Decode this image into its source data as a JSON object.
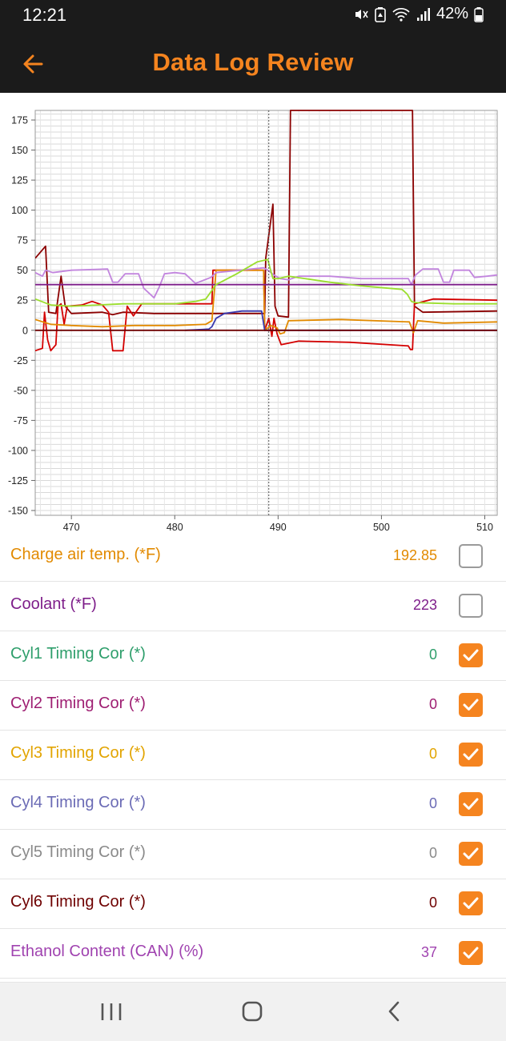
{
  "status": {
    "time": "12:21",
    "battery": "42%"
  },
  "appbar": {
    "title": "Data Log Review",
    "back_icon": "arrow-left-icon"
  },
  "colors": {
    "accent": "#f5841f",
    "bar_bg": "#1b1b1b"
  },
  "chart_data": {
    "type": "line",
    "xlim": [
      466.5,
      511.2
    ],
    "ylim": [
      -154,
      183
    ],
    "x_ticks": [
      470,
      480,
      490,
      500,
      510
    ],
    "y_ticks": [
      175,
      150,
      125,
      100,
      75,
      50,
      25,
      0,
      -25,
      -50,
      -75,
      -100,
      -125,
      -150
    ],
    "y_minor_step": 5,
    "cursor_x": 489.1,
    "grid": true,
    "series": [
      {
        "color": "#8B0000",
        "points": [
          [
            466.5,
            60
          ],
          [
            467.5,
            70
          ],
          [
            467.8,
            15
          ],
          [
            468.5,
            14
          ],
          [
            469,
            45
          ],
          [
            469.4,
            20
          ],
          [
            470,
            14
          ],
          [
            473,
            15
          ],
          [
            474,
            13
          ],
          [
            475,
            15
          ],
          [
            478,
            14
          ],
          [
            482,
            14
          ],
          [
            486,
            14
          ],
          [
            488.7,
            14
          ],
          [
            488.8,
            60
          ],
          [
            489.5,
            105
          ],
          [
            489.7,
            20
          ],
          [
            490,
            12
          ],
          [
            491,
            11
          ],
          [
            491.2,
            183
          ],
          [
            503,
            183
          ],
          [
            503.2,
            20
          ],
          [
            504,
            15
          ],
          [
            511.2,
            16
          ]
        ]
      },
      {
        "color": "#D40000",
        "points": [
          [
            466.5,
            -17
          ],
          [
            467.2,
            -15
          ],
          [
            467.4,
            15
          ],
          [
            467.7,
            -8
          ],
          [
            468,
            -17
          ],
          [
            468.5,
            -12
          ],
          [
            468.7,
            20
          ],
          [
            469,
            22
          ],
          [
            469.3,
            5
          ],
          [
            469.6,
            20
          ],
          [
            471,
            21
          ],
          [
            472,
            24
          ],
          [
            473,
            21
          ],
          [
            473.6,
            15
          ],
          [
            474,
            -17
          ],
          [
            475,
            -17
          ],
          [
            475.4,
            20
          ],
          [
            476,
            12
          ],
          [
            476.8,
            22
          ],
          [
            480,
            22
          ],
          [
            483.6,
            22
          ],
          [
            483.7,
            50
          ],
          [
            488.6,
            50
          ],
          [
            488.7,
            0
          ],
          [
            489.1,
            10
          ],
          [
            489.4,
            -5
          ],
          [
            489.6,
            10
          ],
          [
            489.9,
            -3
          ],
          [
            490.3,
            -12
          ],
          [
            492,
            -9
          ],
          [
            497,
            -10
          ],
          [
            502.6,
            -13
          ],
          [
            502.8,
            -16
          ],
          [
            503,
            -16
          ],
          [
            503.2,
            22
          ],
          [
            505,
            26
          ],
          [
            511.2,
            25
          ]
        ]
      },
      {
        "color": "#E28A00",
        "points": [
          [
            466.5,
            9
          ],
          [
            468,
            5
          ],
          [
            470,
            4
          ],
          [
            473,
            3
          ],
          [
            476,
            4
          ],
          [
            480,
            4
          ],
          [
            483,
            5
          ],
          [
            483.6,
            8
          ],
          [
            484,
            50
          ],
          [
            488.6,
            50
          ],
          [
            488.7,
            0
          ],
          [
            489.3,
            4
          ],
          [
            489.9,
            2
          ],
          [
            490.2,
            -3
          ],
          [
            490.6,
            -2
          ],
          [
            491,
            8
          ],
          [
            496,
            9
          ],
          [
            502.7,
            7
          ],
          [
            503.1,
            -2
          ],
          [
            503.5,
            8
          ],
          [
            506,
            6
          ],
          [
            511.2,
            7
          ]
        ]
      },
      {
        "color": "#C285DE",
        "points": [
          [
            466.5,
            48
          ],
          [
            467.2,
            45
          ],
          [
            467.5,
            50
          ],
          [
            468.2,
            48
          ],
          [
            470,
            50
          ],
          [
            473.5,
            51
          ],
          [
            474,
            40
          ],
          [
            474.5,
            40
          ],
          [
            475.2,
            47
          ],
          [
            476.5,
            47
          ],
          [
            477,
            35
          ],
          [
            478,
            27
          ],
          [
            478.5,
            36
          ],
          [
            479,
            47
          ],
          [
            480,
            48
          ],
          [
            481,
            47
          ],
          [
            482,
            39
          ],
          [
            483.5,
            44
          ],
          [
            484,
            48
          ],
          [
            488.6,
            52
          ],
          [
            489,
            50
          ],
          [
            489.6,
            46
          ],
          [
            490.2,
            43
          ],
          [
            491,
            42
          ],
          [
            492,
            45
          ],
          [
            495,
            45
          ],
          [
            498,
            43
          ],
          [
            502.6,
            43
          ],
          [
            502.9,
            38
          ],
          [
            503.3,
            46
          ],
          [
            504,
            51
          ],
          [
            505.5,
            51
          ],
          [
            506,
            40
          ],
          [
            506.6,
            40
          ],
          [
            507,
            50
          ],
          [
            508.5,
            50
          ],
          [
            509,
            44
          ],
          [
            510.2,
            45
          ],
          [
            511.2,
            46
          ]
        ]
      },
      {
        "color": "#7E1E8A",
        "points": [
          [
            466.5,
            38
          ],
          [
            511.2,
            38
          ]
        ]
      },
      {
        "color": "#9BDE2E",
        "points": [
          [
            466.5,
            26
          ],
          [
            468,
            21
          ],
          [
            470,
            20
          ],
          [
            475,
            22
          ],
          [
            480,
            22
          ],
          [
            482,
            24
          ],
          [
            483,
            26
          ],
          [
            484,
            38
          ],
          [
            486,
            47
          ],
          [
            488,
            57
          ],
          [
            489,
            59
          ],
          [
            489.5,
            43
          ],
          [
            490,
            43
          ],
          [
            491,
            45
          ],
          [
            495,
            40
          ],
          [
            498,
            37
          ],
          [
            502,
            34
          ],
          [
            502.5,
            30
          ],
          [
            502.9,
            24
          ],
          [
            503.3,
            23
          ],
          [
            507,
            22
          ],
          [
            511.2,
            22
          ]
        ]
      },
      {
        "color": "#3A3AAF",
        "points": [
          [
            481,
            0
          ],
          [
            483.3,
            1
          ],
          [
            483.6,
            3
          ],
          [
            484,
            10
          ],
          [
            484.8,
            14
          ],
          [
            486.5,
            16
          ],
          [
            488.4,
            16
          ],
          [
            488.7,
            0
          ],
          [
            511.2,
            0
          ]
        ]
      },
      {
        "color": "#6E0000",
        "points": [
          [
            466.5,
            0
          ],
          [
            511.2,
            0
          ]
        ]
      }
    ]
  },
  "items": [
    {
      "label": "Charge air temp. (*F)",
      "value": "192.85",
      "color": "#E28A00",
      "checked": false
    },
    {
      "label": "Coolant (*F)",
      "value": "223",
      "color": "#7E1E8A",
      "checked": false
    },
    {
      "label": "Cyl1 Timing Cor (*)",
      "value": "0",
      "color": "#2E9E6B",
      "checked": true
    },
    {
      "label": "Cyl2 Timing Cor (*)",
      "value": "0",
      "color": "#9E1E72",
      "checked": true
    },
    {
      "label": "Cyl3 Timing Cor (*)",
      "value": "0",
      "color": "#E2A400",
      "checked": true
    },
    {
      "label": "Cyl4 Timing Cor (*)",
      "value": "0",
      "color": "#6B6BB5",
      "checked": true
    },
    {
      "label": "Cyl5 Timing Cor (*)",
      "value": "0",
      "color": "#8A8A8A",
      "checked": true
    },
    {
      "label": "Cyl6 Timing Cor (*)",
      "value": "0",
      "color": "#6E0000",
      "checked": true
    },
    {
      "label": "Ethanol Content (CAN) (%)",
      "value": "37",
      "color": "#A043B0",
      "checked": true
    }
  ],
  "navbar": {
    "recents_icon": "recents-icon",
    "home_icon": "home-icon",
    "back_icon": "back-chevron-icon"
  }
}
